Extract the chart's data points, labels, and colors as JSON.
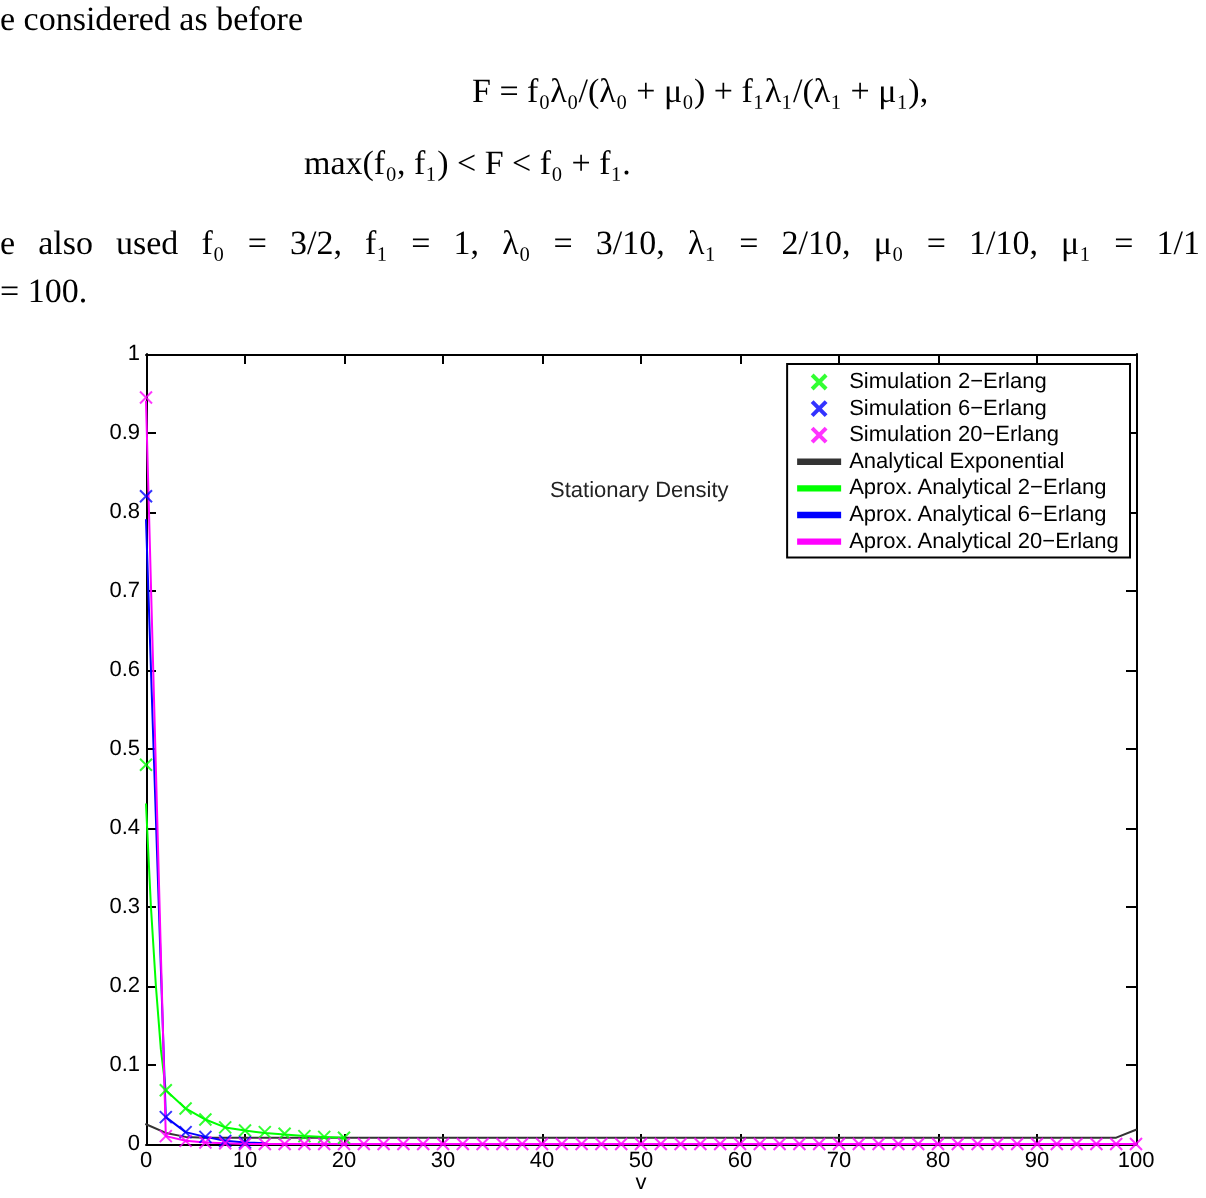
{
  "chart_data": {
    "type": "line",
    "title": "Stationary Density",
    "xlabel": "v",
    "annotations": [
      "e considered as before",
      "F = f₀λ₀/(λ₀ + μ₀) + f₁λ₁/(λ₁ + μ₁),",
      "max(f₀, f₁) < F < f₀ + f₁.",
      "e also used f₀ = 3/2, f₁ = 1, λ₀ = 3/10, λ₁ = 2/10, μ₀ = 1/10, μ₁ = 1/1",
      "= 100."
    ],
    "x": [
      0,
      2,
      4,
      6,
      8,
      10,
      12,
      14,
      16,
      18,
      20,
      22,
      24,
      26,
      28,
      30,
      32,
      34,
      36,
      38,
      40,
      42,
      44,
      46,
      48,
      50,
      52,
      54,
      56,
      58,
      60,
      62,
      64,
      66,
      68,
      70,
      72,
      74,
      76,
      78,
      80,
      82,
      84,
      86,
      88,
      90,
      92,
      94,
      96,
      98,
      100
    ],
    "series": [
      {
        "name": "Simulation 2−Erlang",
        "type": "scatter",
        "marker": "cross",
        "color": "#00ff00",
        "values": [
          0.48,
          0.068,
          0.045,
          0.031,
          0.021,
          0.017,
          0.015,
          0.013,
          0.01,
          0.009,
          0.008,
          null,
          null,
          null,
          null,
          null,
          null,
          null,
          null,
          null,
          null,
          null,
          null,
          null,
          null,
          null,
          null,
          null,
          null,
          null,
          null,
          null,
          null,
          null,
          null,
          null,
          null,
          null,
          null,
          null,
          null,
          null,
          null,
          null,
          null,
          null,
          null,
          null,
          null,
          null,
          null
        ]
      },
      {
        "name": "Simulation 6−Erlang",
        "type": "scatter",
        "marker": "cross",
        "color": "#0000ff",
        "values": [
          0.82,
          0.034,
          0.015,
          0.009,
          0.004,
          0.002,
          null,
          null,
          null,
          null,
          null,
          null,
          null,
          null,
          null,
          null,
          null,
          null,
          null,
          null,
          null,
          null,
          null,
          null,
          null,
          null,
          null,
          null,
          null,
          null,
          null,
          null,
          null,
          null,
          null,
          null,
          null,
          null,
          null,
          null,
          null,
          null,
          null,
          null,
          null,
          null,
          null,
          null,
          null,
          null,
          null
        ]
      },
      {
        "name": "Simulation 20−Erlang",
        "type": "scatter",
        "marker": "cross",
        "color": "#ff00ff",
        "values": [
          0.945,
          0.01,
          0.004,
          0.002,
          0.001,
          0,
          0,
          0,
          0,
          0,
          0,
          0,
          0,
          0,
          0,
          0,
          0,
          0,
          0,
          0,
          0,
          0,
          0,
          0,
          0,
          0,
          0,
          0,
          0,
          0,
          0,
          0,
          0,
          0,
          0,
          0,
          0,
          0,
          0,
          0,
          0,
          0,
          0,
          0,
          0,
          0,
          0,
          0,
          0,
          0,
          0
        ]
      },
      {
        "name": "Analytical Exponential",
        "type": "line",
        "color": "#333333",
        "x": [
          0,
          2,
          4,
          6,
          8,
          10,
          20,
          40,
          60,
          80,
          98,
          100
        ],
        "values": [
          0.025,
          0.014,
          0.009,
          0.008,
          0.008,
          0.008,
          0.008,
          0.008,
          0.008,
          0.008,
          0.008,
          0.018
        ]
      },
      {
        "name": "Aprox. Analytical 2−Erlang",
        "type": "line",
        "color": "#00ff00",
        "x": [
          0,
          0.5,
          1,
          1.5,
          2,
          4,
          6,
          8,
          10,
          12,
          14,
          16,
          18,
          20
        ],
        "values": [
          0.43,
          0.3,
          0.2,
          0.12,
          0.068,
          0.045,
          0.031,
          0.021,
          0.017,
          0.014,
          0.012,
          0.01,
          0.009,
          0.008
        ]
      },
      {
        "name": "Aprox. Analytical 6−Erlang",
        "type": "line",
        "color": "#0000ff",
        "x": [
          0,
          2,
          4,
          6,
          8,
          10,
          12
        ],
        "values": [
          0.79,
          0.034,
          0.015,
          0.009,
          0.004,
          0.002,
          0.001
        ]
      },
      {
        "name": "Aprox. Analytical 20−Erlang",
        "type": "line",
        "color": "#ff00ff",
        "x": [
          0,
          2,
          4,
          6,
          8,
          10,
          20,
          40,
          60,
          80,
          100
        ],
        "values": [
          0.94,
          0.01,
          0.004,
          0.002,
          0.001,
          0,
          0,
          0,
          0,
          0,
          0
        ]
      }
    ],
    "xlim": [
      0,
      100
    ],
    "xticks": [
      0,
      10,
      20,
      30,
      40,
      50,
      60,
      70,
      80,
      90,
      100
    ],
    "ylim": [
      0,
      1
    ],
    "yticks": [
      0,
      0.1,
      0.2,
      0.3,
      0.4,
      0.5,
      0.6,
      0.7,
      0.8,
      0.9,
      1
    ],
    "legend": "top right"
  }
}
